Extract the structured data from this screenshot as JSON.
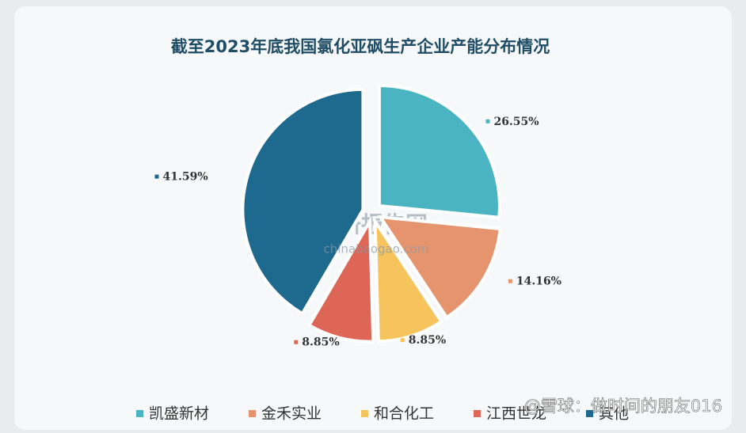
{
  "chart_data": {
    "type": "pie",
    "title": "截至2023年底我国氯化亚砜生产企业产能分布情况",
    "categories": [
      "凯盛新材",
      "金禾实业",
      "和合化工",
      "江西世龙",
      "其他"
    ],
    "values": [
      26.55,
      14.16,
      8.85,
      8.85,
      41.59
    ],
    "value_labels": [
      "26.55%",
      "14.16%",
      "8.85%",
      "8.85%",
      "41.59%"
    ],
    "colors": [
      "#4bb4c3",
      "#e5946d",
      "#f7c35c",
      "#de6656",
      "#1e6a8e"
    ],
    "legend": "bottom",
    "watermark": [
      "观研报告网",
      "chinabaogao.com"
    ],
    "overlay": "@雪球：做时间的朋友016"
  }
}
